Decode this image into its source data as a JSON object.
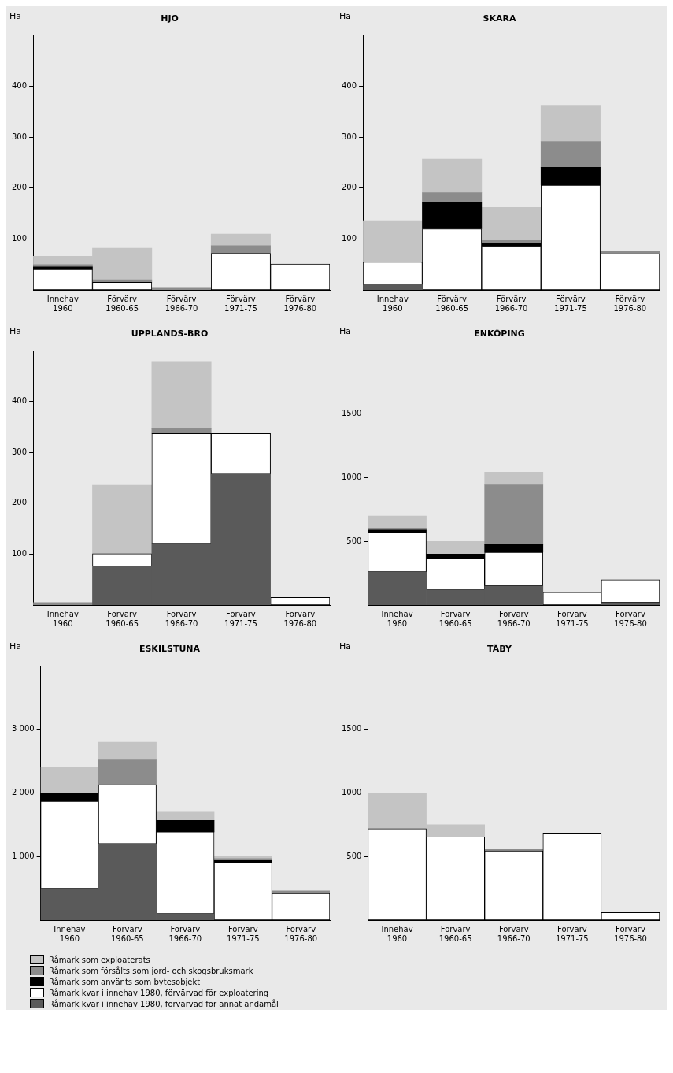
{
  "chart_data": [
    {
      "type": "bar",
      "title": "HJO",
      "ylabel": "Ha",
      "stacked": true,
      "grid": false,
      "legend": false,
      "categories": [
        "Innehav 1960",
        "Förvärv 1960-65",
        "Förvärv 1966-70",
        "Förvärv 1971-75",
        "Förvärv 1976-80"
      ],
      "ylim": [
        0,
        500
      ],
      "yticks": [
        100,
        200,
        300,
        400
      ],
      "series": [
        {
          "color": "#5a5a5a",
          "values": [
            null,
            null,
            null,
            null,
            null
          ]
        },
        {
          "color": "#ffffff",
          "values": [
            40,
            15,
            null,
            72,
            51
          ]
        },
        {
          "color": "#000000",
          "values": [
            5,
            null,
            null,
            null,
            null
          ]
        },
        {
          "color": "#8c8c8c",
          "values": [
            5,
            5,
            5,
            15,
            null
          ]
        },
        {
          "color": "#c4c4c4",
          "values": [
            16,
            62,
            null,
            23,
            null
          ]
        }
      ]
    },
    {
      "type": "bar",
      "title": "SKARA",
      "ylabel": "Ha",
      "stacked": true,
      "grid": false,
      "legend": false,
      "categories": [
        "Innehav 1960",
        "Förvärv 1960-65",
        "Förvärv 1966-70",
        "Förvärv 1971-75",
        "Förvärv 1976-80"
      ],
      "ylim": [
        0,
        500
      ],
      "yticks": [
        100,
        200,
        300,
        400
      ],
      "series": [
        {
          "color": "#5a5a5a",
          "values": [
            10,
            null,
            null,
            null,
            null
          ]
        },
        {
          "color": "#ffffff",
          "values": [
            45,
            120,
            86,
            206,
            71
          ]
        },
        {
          "color": "#000000",
          "values": [
            null,
            52,
            6,
            35,
            null
          ]
        },
        {
          "color": "#8c8c8c",
          "values": [
            null,
            19,
            5,
            51,
            5
          ]
        },
        {
          "color": "#c4c4c4",
          "values": [
            81,
            66,
            65,
            71,
            null
          ]
        }
      ]
    },
    {
      "type": "bar",
      "title": "UPPLANDS-BRO",
      "ylabel": "Ha",
      "stacked": true,
      "grid": false,
      "legend": false,
      "categories": [
        "Innehav 1960",
        "Förvärv 1960-65",
        "Förvärv 1966-70",
        "Förvärv 1971-75",
        "Förvärv 1976-80"
      ],
      "ylim": [
        0,
        500
      ],
      "yticks": [
        100,
        200,
        300,
        400
      ],
      "series": [
        {
          "color": "#5a5a5a",
          "values": [
            null,
            76,
            121,
            257,
            null
          ]
        },
        {
          "color": "#ffffff",
          "values": [
            null,
            25,
            216,
            80,
            15
          ]
        },
        {
          "color": "#8c8c8c",
          "values": [
            5,
            null,
            11,
            null,
            null
          ]
        },
        {
          "color": "#c4c4c4",
          "values": [
            null,
            136,
            131,
            null,
            null
          ]
        }
      ]
    },
    {
      "type": "bar",
      "title": "ENKÖPING",
      "ylabel": "Ha",
      "stacked": true,
      "grid": false,
      "legend": false,
      "categories": [
        "Innehav 1960",
        "Förvärv 1960-65",
        "Förvärv 1966-70",
        "Förvärv 1971-75",
        "Förvärv 1976-80"
      ],
      "ylim": [
        0,
        2000
      ],
      "yticks": [
        500,
        1000,
        1500
      ],
      "series": [
        {
          "color": "#5a5a5a",
          "values": [
            260,
            120,
            150,
            null,
            20
          ]
        },
        {
          "color": "#ffffff",
          "values": [
            310,
            245,
            265,
            100,
            180
          ]
        },
        {
          "color": "#000000",
          "values": [
            20,
            35,
            60,
            null,
            null
          ]
        },
        {
          "color": "#8c8c8c",
          "values": [
            15,
            null,
            475,
            null,
            null
          ]
        },
        {
          "color": "#c4c4c4",
          "values": [
            95,
            100,
            95,
            null,
            null
          ]
        }
      ]
    },
    {
      "type": "bar",
      "title": "ESKILSTUNA",
      "ylabel": "Ha",
      "stacked": true,
      "grid": false,
      "legend": "bottom",
      "categories": [
        "Innehav 1960",
        "Förvärv 1960-65",
        "Förvärv 1966-70",
        "Förvärv 1971-75",
        "Förvärv 1976-80"
      ],
      "ylim": [
        0,
        4000
      ],
      "yticks": [
        {
          "value": 1000,
          "label": "1 000"
        },
        {
          "value": 2000,
          "label": "2 000"
        },
        {
          "value": 3000,
          "label": "3 000"
        }
      ],
      "series": [
        {
          "name": "Råmark kvar i innehav 1980, förvärvad för annat ändamål",
          "color": "#5a5a5a",
          "values": [
            500,
            1200,
            100,
            null,
            null
          ]
        },
        {
          "name": "Råmark kvar i innehav 1980, förvärvad för exploatering",
          "color": "#ffffff",
          "values": [
            1370,
            930,
            1290,
            900,
            420
          ]
        },
        {
          "name": "Råmark som använts som bytesobjekt",
          "color": "#000000",
          "values": [
            130,
            null,
            180,
            40,
            null
          ]
        },
        {
          "name": "Råmark som försålts som jord- och skogsbruksmark",
          "color": "#8c8c8c",
          "values": [
            null,
            390,
            null,
            30,
            40
          ]
        },
        {
          "name": "Råmark som exploaterats",
          "color": "#c4c4c4",
          "values": [
            400,
            280,
            130,
            30,
            null
          ]
        }
      ]
    },
    {
      "type": "bar",
      "title": "TÄBY",
      "ylabel": "Ha",
      "stacked": true,
      "grid": false,
      "legend": false,
      "categories": [
        "Innehav 1960",
        "Förvärv 1960-65",
        "Förvärv 1966-70",
        "Förvärv 1971-75",
        "Förvärv 1976-80"
      ],
      "ylim": [
        0,
        2000
      ],
      "yticks": [
        500,
        1000,
        1500
      ],
      "series": [
        {
          "color": "#ffffff",
          "values": [
            720,
            655,
            545,
            685,
            60
          ]
        },
        {
          "color": "#8c8c8c",
          "values": [
            null,
            null,
            10,
            null,
            null
          ]
        },
        {
          "color": "#c4c4c4",
          "values": [
            280,
            95,
            null,
            null,
            null
          ]
        }
      ]
    }
  ]
}
